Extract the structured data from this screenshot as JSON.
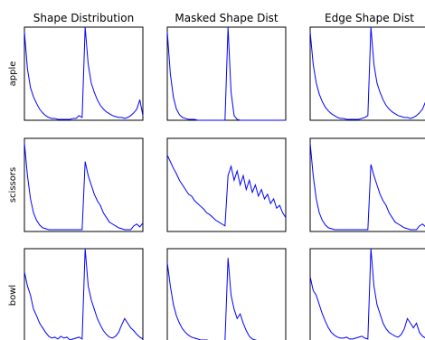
{
  "chart_data": [
    {
      "type": "line",
      "title": "Shape Distribution",
      "ylabel": "apple",
      "color": "#0000ff",
      "ylim": [
        0,
        1
      ],
      "values": [
        0.95,
        0.55,
        0.35,
        0.25,
        0.18,
        0.12,
        0.08,
        0.05,
        0.03,
        0.02,
        0.02,
        0.01,
        0.01,
        0.01,
        0.01,
        0.01,
        0.02,
        0.02,
        0.05,
        0.03,
        1.0,
        0.6,
        0.4,
        0.3,
        0.22,
        0.16,
        0.12,
        0.09,
        0.07,
        0.05,
        0.04,
        0.03,
        0.03,
        0.02,
        0.03,
        0.05,
        0.08,
        0.12,
        0.22,
        0.05
      ]
    },
    {
      "type": "line",
      "title": "Masked Shape Dist",
      "color": "#0000ff",
      "ylim": [
        0,
        1
      ],
      "values": [
        0.95,
        0.5,
        0.25,
        0.12,
        0.06,
        0.03,
        0.02,
        0.01,
        0.01,
        0.01,
        0,
        0,
        0,
        0,
        0,
        0,
        0,
        0,
        0,
        0,
        1.0,
        0.3,
        0.05,
        0.01,
        0,
        0,
        0,
        0,
        0,
        0,
        0,
        0,
        0,
        0,
        0,
        0,
        0,
        0,
        0,
        0
      ]
    },
    {
      "type": "line",
      "title": "Edge Shape Dist",
      "color": "#0000ff",
      "ylim": [
        0,
        1
      ],
      "values": [
        0.95,
        0.6,
        0.4,
        0.28,
        0.2,
        0.14,
        0.1,
        0.07,
        0.05,
        0.03,
        0.02,
        0.02,
        0.01,
        0.01,
        0.01,
        0.01,
        0.01,
        0.02,
        0.03,
        0.05,
        1.0,
        0.6,
        0.4,
        0.3,
        0.22,
        0.16,
        0.12,
        0.09,
        0.07,
        0.05,
        0.04,
        0.03,
        0.03,
        0.02,
        0.03,
        0.05,
        0.08,
        0.12,
        0.2,
        0.05
      ]
    },
    {
      "type": "line",
      "ylabel": "scissors",
      "color": "#0000ff",
      "ylim": [
        0,
        1
      ],
      "values": [
        0.95,
        0.6,
        0.35,
        0.2,
        0.12,
        0.07,
        0.04,
        0.03,
        0.02,
        0.02,
        0.02,
        0.02,
        0.02,
        0.02,
        0.02,
        0.02,
        0.02,
        0.02,
        0.02,
        0.02,
        0.75,
        0.6,
        0.5,
        0.4,
        0.33,
        0.28,
        0.2,
        0.15,
        0.1,
        0.08,
        0.06,
        0.04,
        0.03,
        0.02,
        0.02,
        0.02,
        0.06,
        0.08,
        0.05,
        0.09
      ]
    },
    {
      "type": "line",
      "color": "#0000ff",
      "ylim": [
        0,
        1
      ],
      "values": [
        0.82,
        0.75,
        0.68,
        0.62,
        0.55,
        0.5,
        0.45,
        0.4,
        0.38,
        0.33,
        0.3,
        0.27,
        0.24,
        0.2,
        0.18,
        0.15,
        0.12,
        0.1,
        0.08,
        0.06,
        0.6,
        0.7,
        0.55,
        0.65,
        0.5,
        0.6,
        0.45,
        0.55,
        0.42,
        0.5,
        0.38,
        0.45,
        0.35,
        0.4,
        0.3,
        0.35,
        0.25,
        0.28,
        0.2,
        0.15
      ]
    },
    {
      "type": "line",
      "color": "#0000ff",
      "ylim": [
        0,
        1
      ],
      "values": [
        0.95,
        0.6,
        0.35,
        0.2,
        0.12,
        0.07,
        0.04,
        0.03,
        0.02,
        0.02,
        0.02,
        0.02,
        0.02,
        0.02,
        0.02,
        0.02,
        0.02,
        0.02,
        0.02,
        0.02,
        0.72,
        0.6,
        0.5,
        0.4,
        0.33,
        0.28,
        0.2,
        0.15,
        0.1,
        0.08,
        0.06,
        0.04,
        0.03,
        0.02,
        0.02,
        0.02,
        0.06,
        0.08,
        0.05,
        0.09
      ]
    },
    {
      "type": "line",
      "ylabel": "bowl",
      "color": "#0000ff",
      "ylim": [
        0,
        1
      ],
      "values": [
        0.75,
        0.6,
        0.5,
        0.35,
        0.28,
        0.2,
        0.15,
        0.1,
        0.06,
        0.04,
        0.05,
        0.03,
        0.06,
        0.04,
        0.05,
        0.02,
        0.03,
        0.04,
        0.05,
        0.03,
        1.0,
        0.6,
        0.45,
        0.35,
        0.25,
        0.18,
        0.12,
        0.08,
        0.05,
        0.04,
        0.06,
        0.1,
        0.18,
        0.25,
        0.2,
        0.15,
        0.12,
        0.08,
        0.05,
        0.03
      ]
    },
    {
      "type": "line",
      "color": "#0000ff",
      "ylim": [
        0,
        1
      ],
      "values": [
        0.85,
        0.6,
        0.4,
        0.28,
        0.2,
        0.14,
        0.1,
        0.07,
        0.05,
        0.04,
        0.03,
        0.02,
        0.02,
        0.02,
        0.01,
        0.01,
        0.01,
        0.01,
        0.01,
        0.01,
        0.9,
        0.5,
        0.35,
        0.25,
        0.3,
        0.2,
        0.12,
        0.06,
        0.03,
        0.02,
        0.01,
        0.01,
        0,
        0,
        0,
        0,
        0,
        0,
        0,
        0
      ]
    },
    {
      "type": "line",
      "color": "#0000ff",
      "ylim": [
        0,
        1
      ],
      "values": [
        0.7,
        0.55,
        0.5,
        0.4,
        0.3,
        0.22,
        0.15,
        0.1,
        0.07,
        0.05,
        0.04,
        0.04,
        0.05,
        0.03,
        0.03,
        0.04,
        0.05,
        0.06,
        0.04,
        0.03,
        1.0,
        0.6,
        0.4,
        0.3,
        0.2,
        0.14,
        0.1,
        0.08,
        0.06,
        0.05,
        0.08,
        0.14,
        0.25,
        0.2,
        0.15,
        0.2,
        0.1,
        0.06,
        0.04,
        0.03
      ]
    }
  ]
}
